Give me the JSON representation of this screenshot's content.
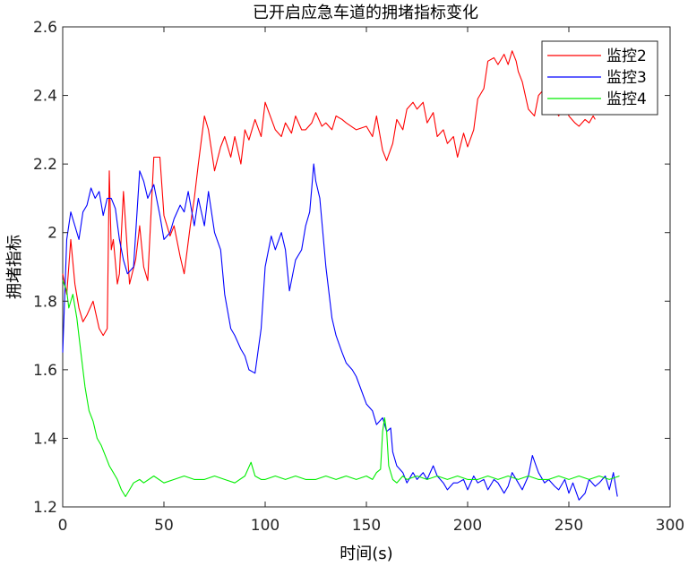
{
  "chart_data": {
    "type": "line",
    "title": "已开启应急车道的拥堵指标变化",
    "xlabel": "时间(s)",
    "ylabel": "拥堵指标",
    "xlim": [
      0,
      300
    ],
    "ylim": [
      1.2,
      2.6
    ],
    "xticks": [
      0,
      50,
      100,
      150,
      200,
      250,
      300
    ],
    "yticks": [
      1.2,
      1.4,
      1.6,
      1.8,
      2,
      2.2,
      2.4,
      2.6
    ],
    "grid": false,
    "legend_position": "top-right",
    "series": [
      {
        "name": "监控2",
        "color": "#ff0000",
        "x": [
          0,
          2,
          4,
          6,
          8,
          10,
          12,
          15,
          18,
          20,
          22,
          23,
          24,
          25,
          27,
          28,
          30,
          33,
          36,
          38,
          40,
          42,
          45,
          48,
          50,
          53,
          55,
          58,
          60,
          63,
          65,
          67,
          70,
          72,
          75,
          78,
          80,
          83,
          85,
          88,
          90,
          92,
          95,
          98,
          100,
          105,
          108,
          110,
          113,
          115,
          118,
          120,
          123,
          125,
          128,
          130,
          133,
          135,
          138,
          140,
          145,
          150,
          153,
          155,
          158,
          160,
          163,
          165,
          168,
          170,
          173,
          175,
          178,
          180,
          183,
          185,
          188,
          190,
          193,
          195,
          198,
          200,
          203,
          205,
          208,
          210,
          213,
          215,
          218,
          220,
          222,
          224,
          225,
          227,
          230,
          233,
          235,
          238,
          240,
          243,
          245,
          248,
          250,
          253,
          255,
          258,
          260,
          262,
          263
        ],
        "y": [
          1.88,
          1.82,
          1.98,
          1.85,
          1.78,
          1.74,
          1.76,
          1.8,
          1.72,
          1.7,
          1.72,
          2.18,
          1.95,
          1.98,
          1.85,
          1.88,
          2.12,
          1.85,
          1.92,
          2.02,
          1.9,
          1.86,
          2.22,
          2.22,
          2.05,
          1.99,
          2.02,
          1.93,
          1.88,
          2.02,
          2.1,
          2.2,
          2.34,
          2.3,
          2.18,
          2.25,
          2.28,
          2.22,
          2.28,
          2.2,
          2.3,
          2.27,
          2.33,
          2.28,
          2.38,
          2.3,
          2.28,
          2.32,
          2.29,
          2.34,
          2.3,
          2.3,
          2.32,
          2.35,
          2.31,
          2.32,
          2.3,
          2.34,
          2.33,
          2.32,
          2.3,
          2.31,
          2.28,
          2.34,
          2.24,
          2.21,
          2.26,
          2.33,
          2.3,
          2.36,
          2.38,
          2.36,
          2.38,
          2.32,
          2.35,
          2.28,
          2.3,
          2.26,
          2.28,
          2.22,
          2.29,
          2.25,
          2.3,
          2.39,
          2.42,
          2.5,
          2.51,
          2.49,
          2.52,
          2.49,
          2.53,
          2.5,
          2.47,
          2.44,
          2.36,
          2.34,
          2.4,
          2.42,
          2.36,
          2.36,
          2.34,
          2.38,
          2.34,
          2.32,
          2.31,
          2.33,
          2.32,
          2.34,
          2.33
        ]
      },
      {
        "name": "监控3",
        "color": "#0000ff",
        "x": [
          0,
          2,
          4,
          6,
          8,
          10,
          12,
          14,
          16,
          18,
          20,
          22,
          24,
          26,
          28,
          30,
          32,
          35,
          38,
          40,
          42,
          45,
          48,
          50,
          53,
          55,
          58,
          60,
          62,
          65,
          67,
          70,
          72,
          75,
          78,
          80,
          83,
          85,
          88,
          90,
          92,
          95,
          98,
          100,
          103,
          105,
          108,
          110,
          112,
          115,
          118,
          120,
          122,
          123,
          124,
          125,
          127,
          130,
          133,
          135,
          138,
          140,
          143,
          145,
          150,
          153,
          155,
          158,
          160,
          162,
          163,
          165,
          168,
          170,
          173,
          175,
          178,
          180,
          183,
          185,
          188,
          190,
          193,
          195,
          198,
          200,
          203,
          205,
          208,
          210,
          213,
          215,
          218,
          220,
          222,
          225,
          227,
          230,
          232,
          235,
          238,
          240,
          243,
          245,
          248,
          250,
          252,
          255,
          258,
          260,
          263,
          265,
          268,
          270,
          272,
          274
        ],
        "y": [
          1.65,
          1.98,
          2.06,
          2.02,
          1.98,
          2.06,
          2.08,
          2.13,
          2.1,
          2.12,
          2.05,
          2.1,
          2.1,
          2.07,
          1.98,
          1.92,
          1.88,
          1.9,
          2.18,
          2.15,
          2.1,
          2.14,
          2.05,
          1.98,
          2.0,
          2.04,
          2.08,
          2.06,
          2.12,
          2.02,
          2.1,
          2.02,
          2.12,
          2.0,
          1.95,
          1.82,
          1.72,
          1.7,
          1.66,
          1.64,
          1.6,
          1.59,
          1.72,
          1.9,
          1.99,
          1.95,
          2.0,
          1.95,
          1.83,
          1.92,
          1.95,
          2.02,
          2.06,
          2.13,
          2.2,
          2.15,
          2.1,
          1.9,
          1.75,
          1.7,
          1.65,
          1.62,
          1.6,
          1.58,
          1.5,
          1.48,
          1.44,
          1.46,
          1.42,
          1.43,
          1.36,
          1.32,
          1.3,
          1.27,
          1.3,
          1.28,
          1.3,
          1.28,
          1.32,
          1.29,
          1.27,
          1.25,
          1.27,
          1.27,
          1.28,
          1.25,
          1.29,
          1.27,
          1.28,
          1.25,
          1.28,
          1.27,
          1.24,
          1.26,
          1.3,
          1.27,
          1.25,
          1.29,
          1.35,
          1.3,
          1.27,
          1.28,
          1.26,
          1.25,
          1.28,
          1.24,
          1.27,
          1.22,
          1.24,
          1.28,
          1.26,
          1.27,
          1.29,
          1.25,
          1.3,
          1.23
        ]
      },
      {
        "name": "监控4",
        "color": "#00ee00",
        "x": [
          0,
          2,
          3,
          5,
          7,
          9,
          11,
          13,
          15,
          17,
          19,
          21,
          23,
          25,
          27,
          29,
          31,
          33,
          35,
          38,
          40,
          45,
          50,
          55,
          60,
          65,
          70,
          75,
          80,
          85,
          90,
          93,
          95,
          98,
          100,
          105,
          110,
          115,
          120,
          125,
          130,
          135,
          140,
          145,
          150,
          153,
          155,
          157,
          158,
          159,
          160,
          161,
          163,
          165,
          168,
          170,
          175,
          180,
          185,
          190,
          195,
          200,
          205,
          210,
          215,
          220,
          225,
          230,
          235,
          240,
          245,
          250,
          255,
          260,
          265,
          270,
          275
        ],
        "y": [
          1.86,
          1.83,
          1.78,
          1.82,
          1.75,
          1.65,
          1.55,
          1.48,
          1.45,
          1.4,
          1.38,
          1.35,
          1.32,
          1.3,
          1.28,
          1.25,
          1.23,
          1.25,
          1.27,
          1.28,
          1.27,
          1.29,
          1.27,
          1.28,
          1.29,
          1.28,
          1.28,
          1.29,
          1.28,
          1.27,
          1.29,
          1.33,
          1.29,
          1.28,
          1.28,
          1.29,
          1.28,
          1.29,
          1.28,
          1.28,
          1.29,
          1.28,
          1.29,
          1.28,
          1.29,
          1.28,
          1.3,
          1.31,
          1.42,
          1.46,
          1.42,
          1.32,
          1.28,
          1.27,
          1.29,
          1.28,
          1.29,
          1.28,
          1.29,
          1.28,
          1.29,
          1.28,
          1.28,
          1.29,
          1.28,
          1.29,
          1.28,
          1.29,
          1.28,
          1.28,
          1.29,
          1.28,
          1.29,
          1.28,
          1.29,
          1.28,
          1.29
        ]
      }
    ]
  }
}
